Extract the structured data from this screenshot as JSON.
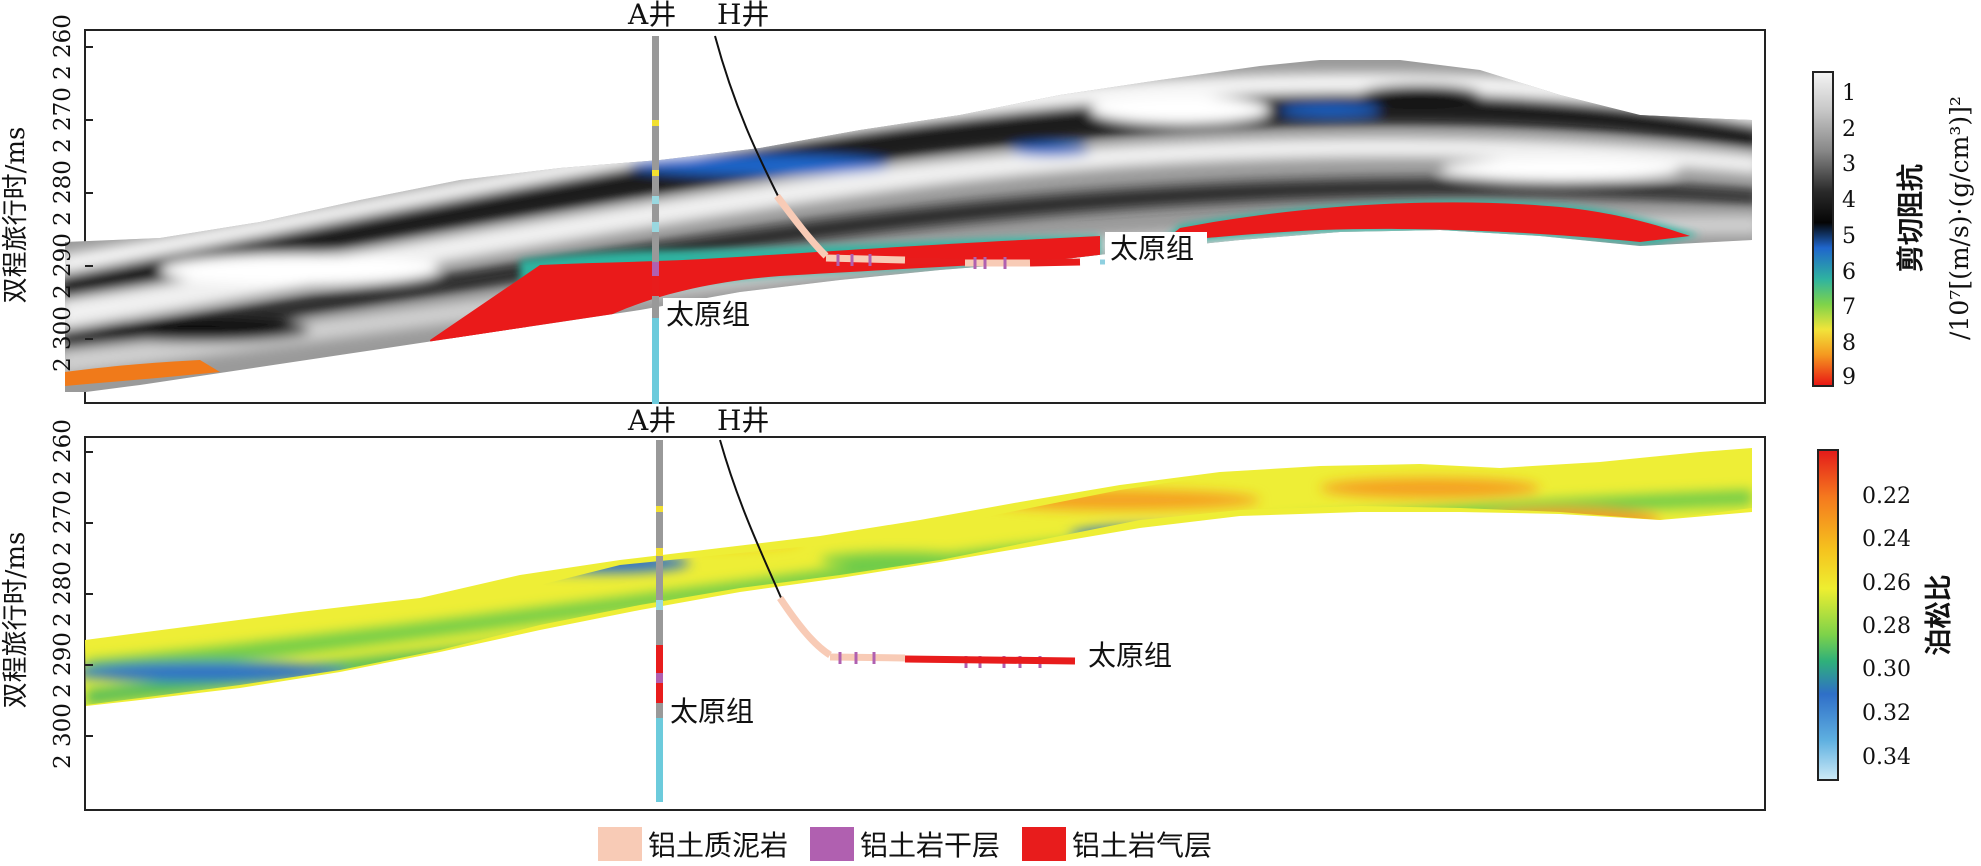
{
  "top_panel": {
    "ylabel": "双程旅行时/ms",
    "yticks": [
      "2 260",
      "2 270",
      "2 280",
      "2 290",
      "2 300"
    ],
    "well_labels": [
      "A井",
      "H井"
    ],
    "formation_label_a": "太原组",
    "formation_label_h": "太原组",
    "colorbar": {
      "title": "剪切阻抗",
      "unit": "/10⁷[(m/s)·(g/cm³)]²",
      "ticks": [
        "1",
        "2",
        "3",
        "4",
        "5",
        "6",
        "7",
        "8",
        "9"
      ],
      "colors": [
        "#f2f2f2",
        "#bdbdbd",
        "#7a7a7a",
        "#333333",
        "#0a0a0a",
        "#1a6fd0",
        "#2fb3a0",
        "#7bd64a",
        "#f0e23a",
        "#f5a020",
        "#f03a1c",
        "#e81414"
      ]
    }
  },
  "bottom_panel": {
    "ylabel": "双程旅行时/ms",
    "yticks": [
      "2 260",
      "2 270",
      "2 280",
      "2 290",
      "2 300"
    ],
    "well_labels": [
      "A井",
      "H井"
    ],
    "formation_label_a": "太原组",
    "formation_label_h": "太原组",
    "colorbar": {
      "title": "泊松比",
      "ticks": [
        "0.22",
        "0.24",
        "0.26",
        "0.28",
        "0.30",
        "0.32",
        "0.34"
      ],
      "colors": [
        "#e8261c",
        "#f5781e",
        "#f5c21e",
        "#f2ee2e",
        "#7dd24a",
        "#2fb07a",
        "#2f6fc8",
        "#5fb0e0",
        "#bfe6f5"
      ]
    }
  },
  "legend": [
    {
      "label": "铝土质泥岩",
      "color": "#f8cbb6"
    },
    {
      "label": "铝土岩干层",
      "color": "#b060b0"
    },
    {
      "label": "铝土岩气层",
      "color": "#e81c1c"
    }
  ]
}
